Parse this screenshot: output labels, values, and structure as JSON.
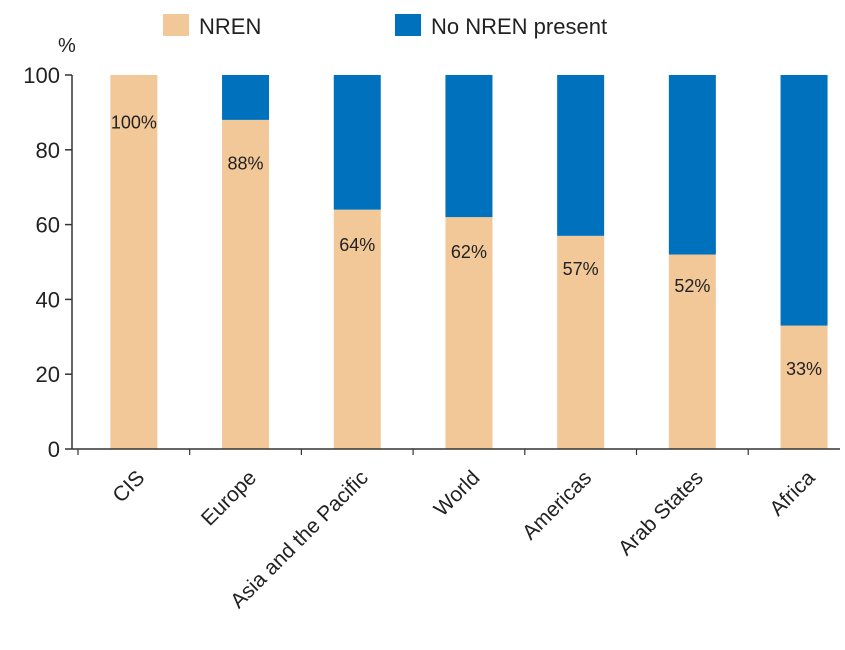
{
  "chart_data": {
    "type": "bar",
    "stacked": true,
    "ylabel": "%",
    "ylim": [
      0,
      100
    ],
    "yticks": [
      0,
      20,
      40,
      60,
      80,
      100
    ],
    "grid": false,
    "legend_position": "top",
    "categories": [
      "CIS",
      "Europe",
      "Asia and the Pacific",
      "World",
      "Americas",
      "Arab States",
      "Africa"
    ],
    "series": [
      {
        "name": "NREN",
        "color": "#f2c899",
        "values": [
          100,
          88,
          64,
          62,
          57,
          52,
          33
        ]
      },
      {
        "name": "No NREN present",
        "color": "#0071bd",
        "values": [
          0,
          12,
          36,
          38,
          43,
          48,
          67
        ]
      }
    ],
    "data_labels": [
      "100%",
      "88%",
      "64%",
      "62%",
      "57%",
      "52%",
      "33%"
    ]
  }
}
